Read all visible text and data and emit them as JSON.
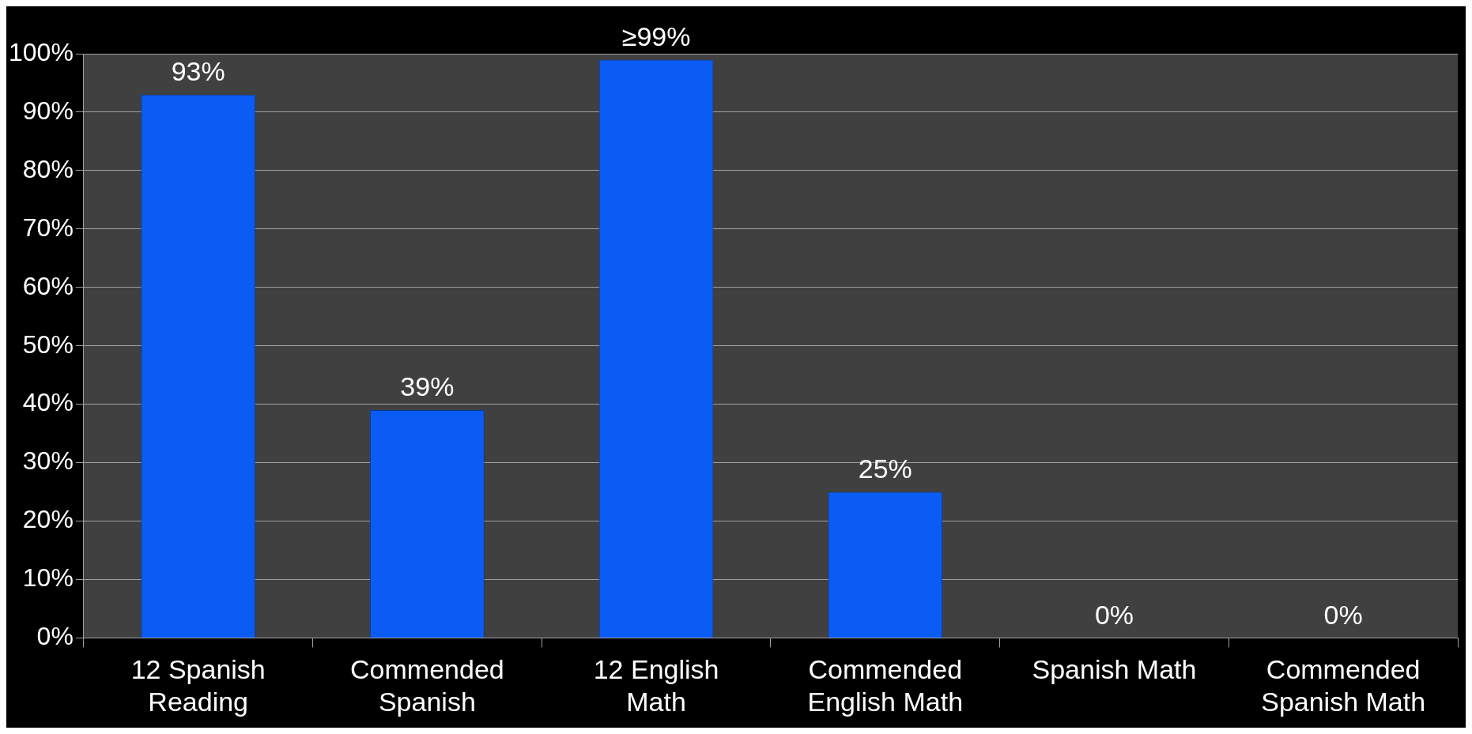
{
  "chart_data": {
    "type": "bar",
    "categories": [
      "12 Spanish Reading",
      "Commended Spanish",
      "12 English Math",
      "Commended English Math",
      "Spanish Math",
      "Commended Spanish Math"
    ],
    "values": [
      93,
      39,
      99,
      25,
      0,
      0
    ],
    "value_labels": [
      "93%",
      "39%",
      "≥99%",
      "25%",
      "0%",
      "0%"
    ],
    "color": "#0a5cf5",
    "ylim": [
      0,
      100
    ],
    "yticks": [
      {
        "value": 0,
        "label": "0%"
      },
      {
        "value": 10,
        "label": "10%"
      },
      {
        "value": 20,
        "label": "20%"
      },
      {
        "value": 30,
        "label": "30%"
      },
      {
        "value": 40,
        "label": "40%"
      },
      {
        "value": 50,
        "label": "50%"
      },
      {
        "value": 60,
        "label": "60%"
      },
      {
        "value": 70,
        "label": "70%"
      },
      {
        "value": 80,
        "label": "80%"
      },
      {
        "value": 90,
        "label": "90%"
      },
      {
        "value": 100,
        "label": "100%"
      }
    ],
    "grid": "y",
    "legend": false
  }
}
